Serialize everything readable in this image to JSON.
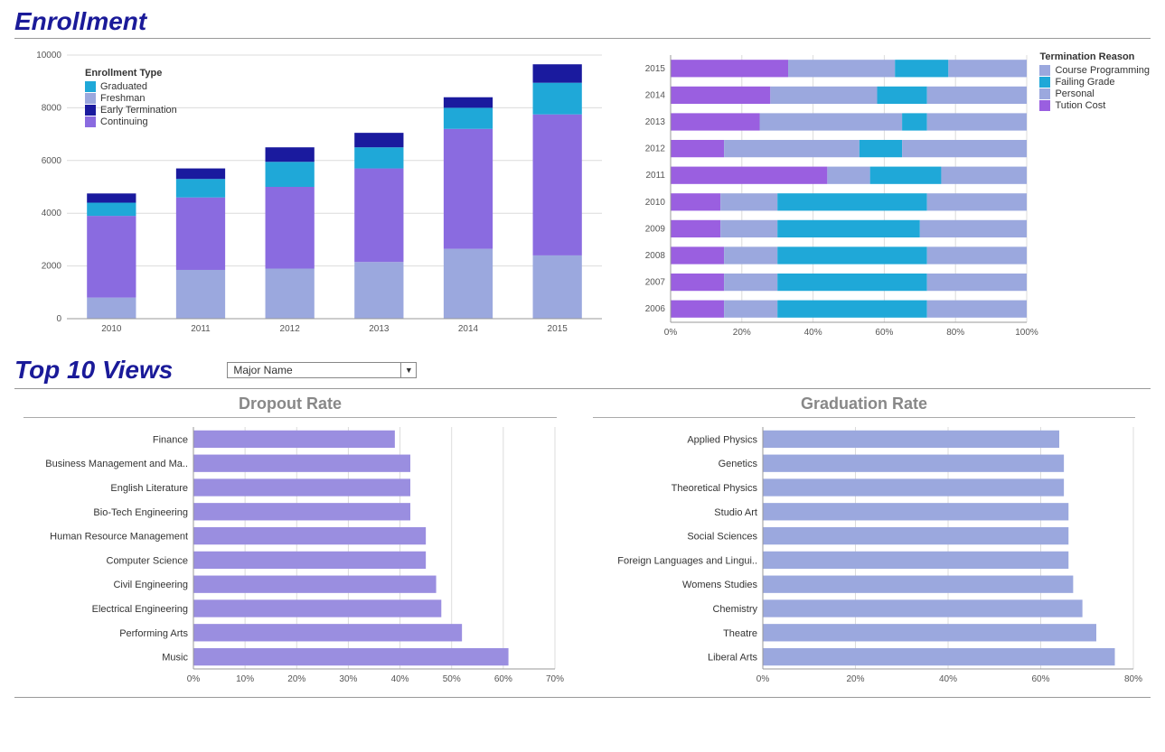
{
  "titles": {
    "enrollment": "Enrollment",
    "top10": "Top 10 Views",
    "dropout": "Dropout Rate",
    "graduation": "Graduation Rate"
  },
  "dropdown": {
    "selected": "Major Name"
  },
  "colors": {
    "graduated": "#1fa8d8",
    "freshman": "#9ba8de",
    "early_termination": "#1a1a9e",
    "continuing": "#8a6be0",
    "term_course_programming": "#9ba8de",
    "term_failing_grade": "#1fa8d8",
    "term_personal": "#9ba8de",
    "term_tuition_cost": "#9a5fe0",
    "dropout_bar": "#9a8ee0",
    "graduation_bar": "#9ba8de",
    "grid": "#dcdcdc",
    "axis": "#999999",
    "title": "#1a1a99",
    "subtitle": "#888888"
  },
  "enrollment_chart": {
    "type": "stacked-bar",
    "ylim": [
      0,
      10000
    ],
    "ytick_step": 2000,
    "categories": [
      "2010",
      "2011",
      "2012",
      "2013",
      "2014",
      "2015"
    ],
    "legend_title": "Enrollment Type",
    "series_order": [
      "freshman",
      "continuing",
      "graduated",
      "early_termination"
    ],
    "series_labels": {
      "graduated": "Graduated",
      "freshman": "Freshman",
      "early_termination": "Early Termination",
      "continuing": "Continuing"
    },
    "data": [
      {
        "freshman": 800,
        "continuing": 3100,
        "graduated": 500,
        "early_termination": 350
      },
      {
        "freshman": 1850,
        "continuing": 2750,
        "graduated": 700,
        "early_termination": 400
      },
      {
        "freshman": 1900,
        "continuing": 3100,
        "graduated": 950,
        "early_termination": 550
      },
      {
        "freshman": 2150,
        "continuing": 3550,
        "graduated": 800,
        "early_termination": 550
      },
      {
        "freshman": 2650,
        "continuing": 4550,
        "graduated": 800,
        "early_termination": 400
      },
      {
        "freshman": 2400,
        "continuing": 5350,
        "graduated": 1200,
        "early_termination": 700
      }
    ]
  },
  "termination_chart": {
    "type": "stacked-bar-horizontal-100",
    "xlim": [
      0,
      100
    ],
    "xtick_step": 20,
    "xtick_suffix": "%",
    "legend_title": "Termination Reason",
    "categories": [
      "2015",
      "2014",
      "2013",
      "2012",
      "2011",
      "2010",
      "2009",
      "2008",
      "2007",
      "2006"
    ],
    "series_order": [
      "tuition_cost",
      "personal",
      "failing_grade",
      "course_programming"
    ],
    "series_labels": {
      "course_programming": "Course Programming",
      "failing_grade": "Failing Grade",
      "personal": "Personal",
      "tuition_cost": "Tution Cost"
    },
    "series_colors": {
      "course_programming": "#9ba8de",
      "failing_grade": "#1fa8d8",
      "personal": "#9ba8de",
      "tuition_cost": "#9a5fe0"
    },
    "data": [
      {
        "tuition_cost": 33,
        "personal": 30,
        "failing_grade": 15,
        "course_programming": 22
      },
      {
        "tuition_cost": 28,
        "personal": 30,
        "failing_grade": 14,
        "course_programming": 28
      },
      {
        "tuition_cost": 25,
        "personal": 40,
        "failing_grade": 7,
        "course_programming": 28
      },
      {
        "tuition_cost": 15,
        "personal": 38,
        "failing_grade": 12,
        "course_programming": 35
      },
      {
        "tuition_cost": 44,
        "personal": 12,
        "failing_grade": 20,
        "course_programming": 24
      },
      {
        "tuition_cost": 14,
        "personal": 16,
        "failing_grade": 42,
        "course_programming": 28
      },
      {
        "tuition_cost": 14,
        "personal": 16,
        "failing_grade": 40,
        "course_programming": 30
      },
      {
        "tuition_cost": 15,
        "personal": 15,
        "failing_grade": 42,
        "course_programming": 28
      },
      {
        "tuition_cost": 15,
        "personal": 15,
        "failing_grade": 42,
        "course_programming": 28
      },
      {
        "tuition_cost": 15,
        "personal": 15,
        "failing_grade": 42,
        "course_programming": 28
      }
    ]
  },
  "dropout_chart": {
    "type": "bar-horizontal",
    "xlim": [
      0,
      70
    ],
    "xtick_step": 10,
    "xtick_suffix": "%",
    "bar_color": "#9a8ee0",
    "items": [
      {
        "label": "Finance",
        "value": 39
      },
      {
        "label": "Business Management and Ma..",
        "value": 42
      },
      {
        "label": "English Literature",
        "value": 42
      },
      {
        "label": "Bio-Tech Engineering",
        "value": 42
      },
      {
        "label": "Human Resource Management",
        "value": 45
      },
      {
        "label": "Computer Science",
        "value": 45
      },
      {
        "label": "Civil Engineering",
        "value": 47
      },
      {
        "label": "Electrical Engineering",
        "value": 48
      },
      {
        "label": "Performing Arts",
        "value": 52
      },
      {
        "label": "Music",
        "value": 61
      }
    ]
  },
  "graduation_chart": {
    "type": "bar-horizontal",
    "xlim": [
      0,
      80
    ],
    "xtick_step": 20,
    "xtick_suffix": "%",
    "bar_color": "#9ba8de",
    "items": [
      {
        "label": "Applied Physics",
        "value": 64
      },
      {
        "label": "Genetics",
        "value": 65
      },
      {
        "label": "Theoretical Physics",
        "value": 65
      },
      {
        "label": "Studio Art",
        "value": 66
      },
      {
        "label": "Social Sciences",
        "value": 66
      },
      {
        "label": "Foreign Languages and Lingui..",
        "value": 66
      },
      {
        "label": "Womens Studies",
        "value": 67
      },
      {
        "label": "Chemistry",
        "value": 69
      },
      {
        "label": "Theatre",
        "value": 72
      },
      {
        "label": "Liberal Arts",
        "value": 76
      }
    ]
  }
}
